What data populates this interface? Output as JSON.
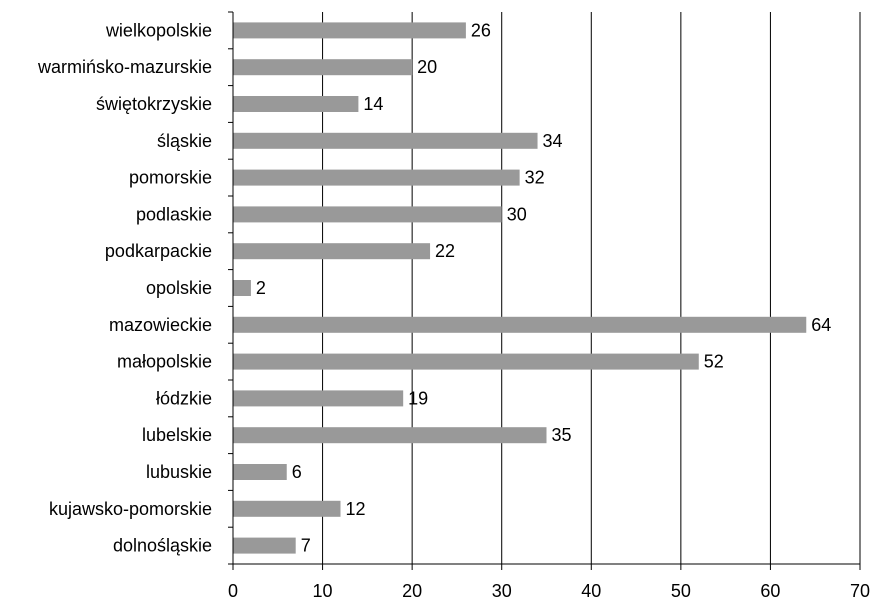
{
  "chart_data": {
    "type": "bar",
    "orientation": "horizontal",
    "title": "",
    "xlabel": "",
    "ylabel": "",
    "categories": [
      "wielkopolskie",
      "warmińsko-mazurskie",
      "świętokrzyskie",
      "śląskie",
      "pomorskie",
      "podlaskie",
      "podkarpackie",
      "opolskie",
      "mazowieckie",
      "małopolskie",
      "łódzkie",
      "lubelskie",
      "lubuskie",
      "kujawsko-pomorskie",
      "dolnośląskie"
    ],
    "values": [
      26,
      20,
      14,
      34,
      32,
      30,
      22,
      2,
      64,
      52,
      19,
      35,
      6,
      12,
      7
    ],
    "data_labels": [
      "26",
      "20",
      "14",
      "34",
      "32",
      "30",
      "22",
      "2",
      "64",
      "52",
      "19",
      "35",
      "6",
      "12",
      "7"
    ],
    "xlim": [
      0,
      70
    ],
    "xticks": [
      "0",
      "10",
      "20",
      "30",
      "40",
      "50",
      "60",
      "70"
    ],
    "grid": "vertical",
    "legend": "none",
    "bar_color": "#999999",
    "grid_color": "#000000"
  }
}
